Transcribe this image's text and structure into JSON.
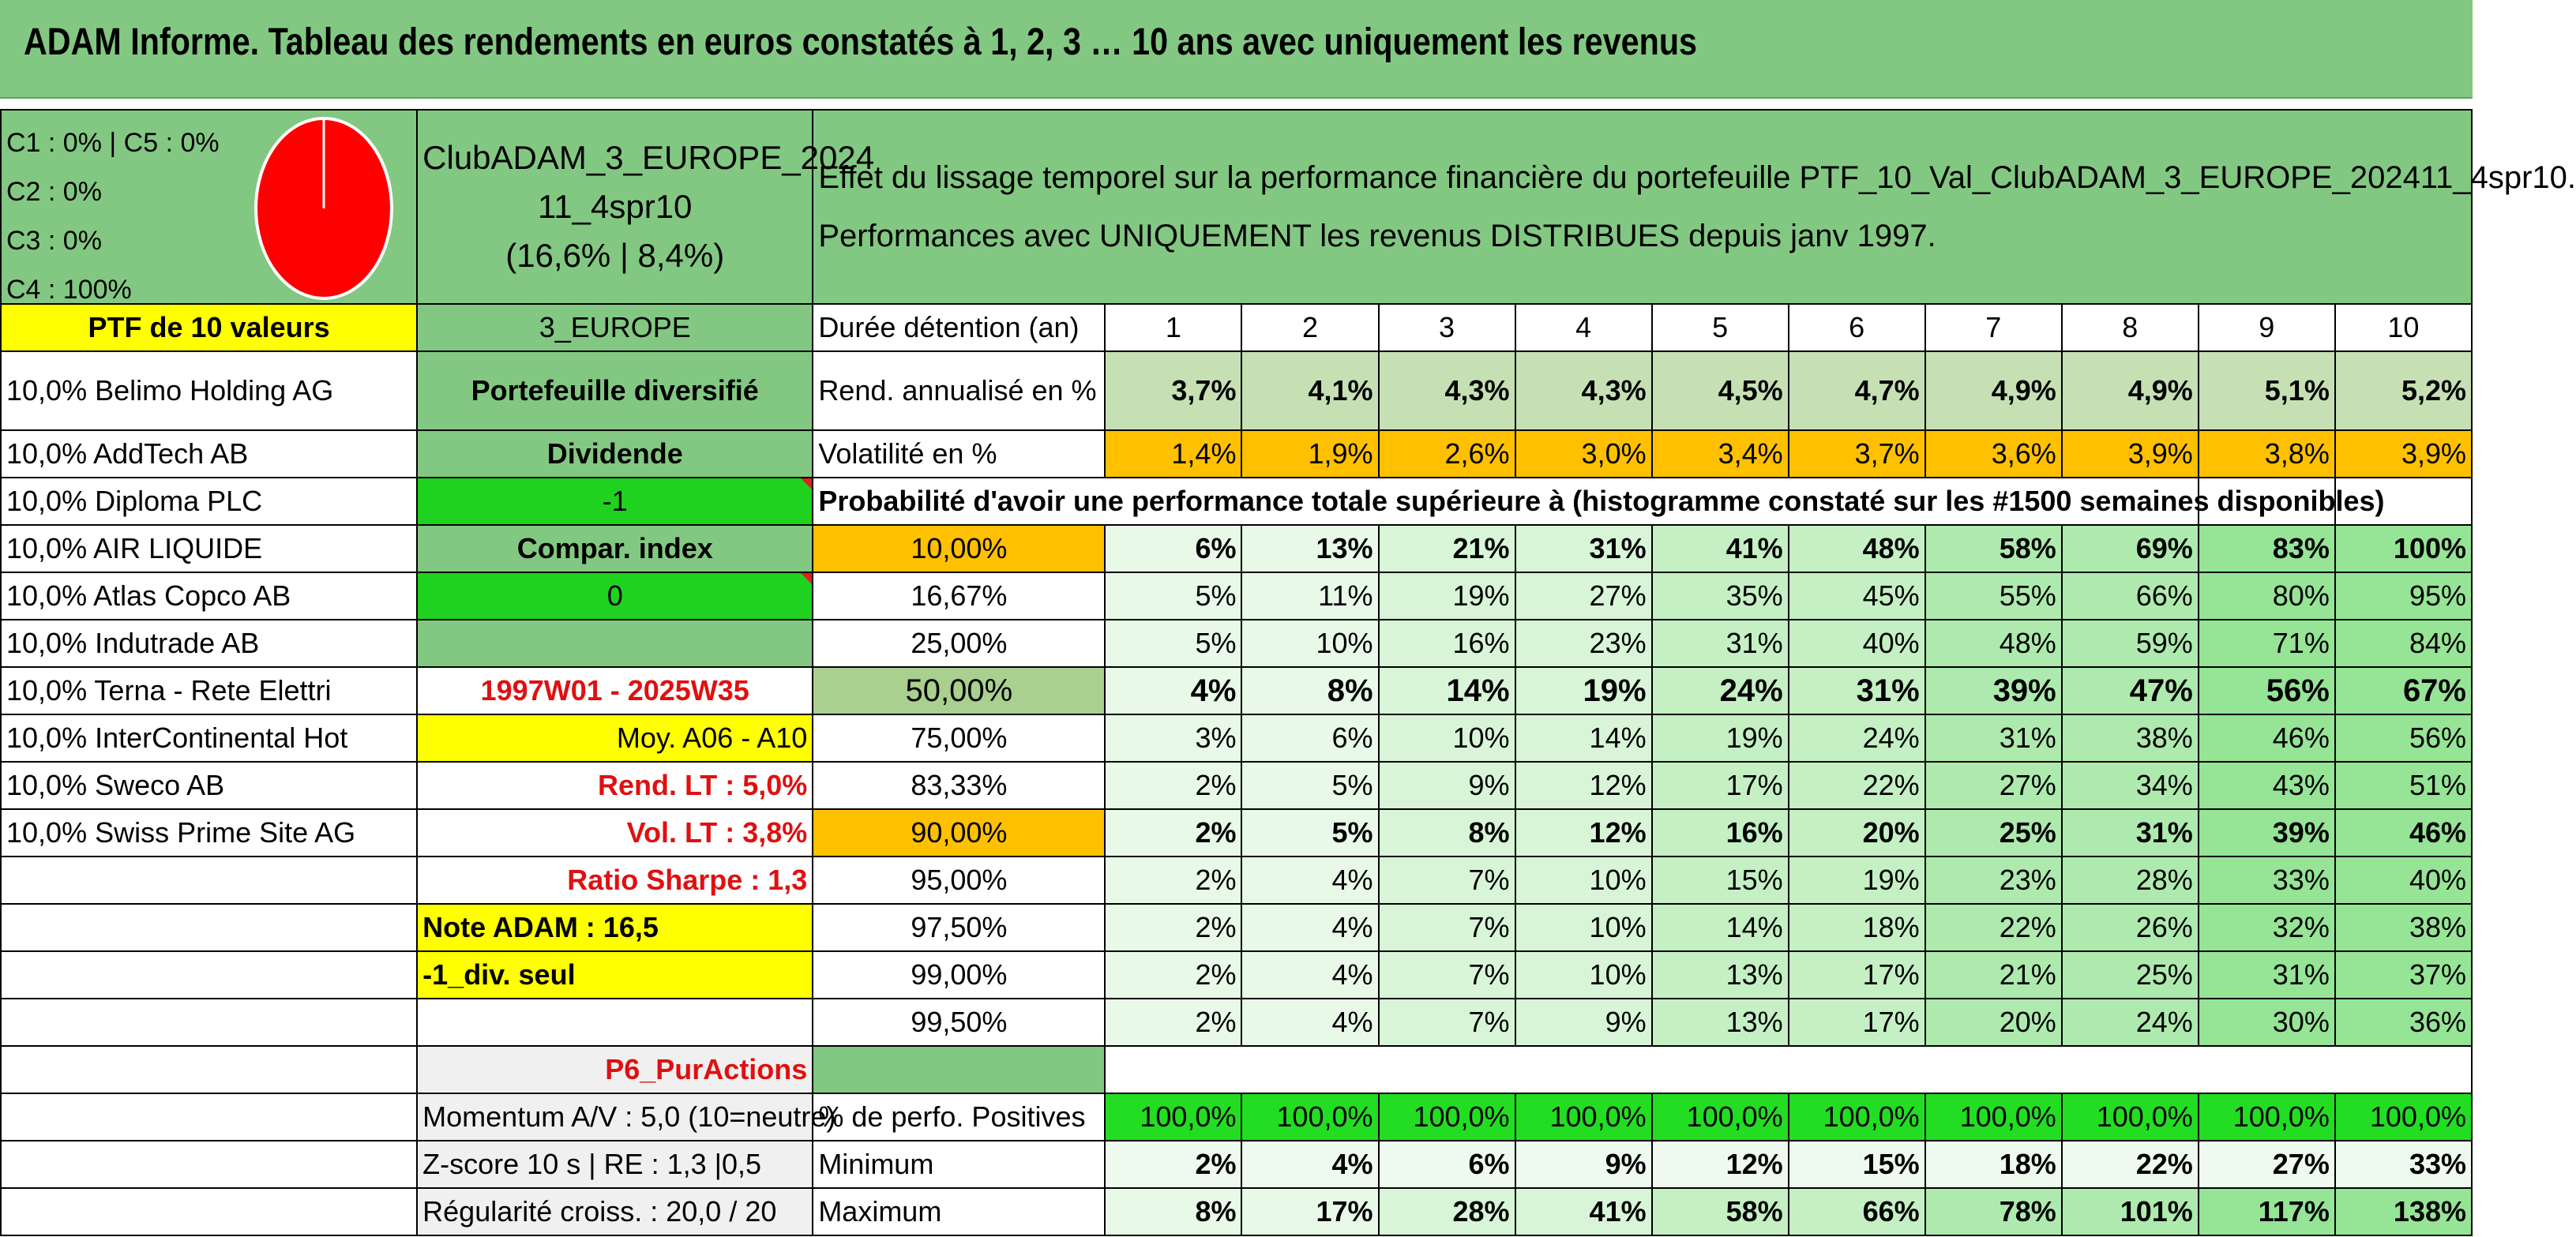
{
  "title": "ADAM Informe. Tableau des rendements en euros constatés à 1, 2, 3 … 10 ans avec uniquement les revenus",
  "allocation": {
    "lines": [
      "C1 : 0% | C5 : 0%",
      "C2 : 0%",
      "C3 : 0%",
      "C4 : 100%"
    ],
    "pie_color": "#ff0000"
  },
  "club": {
    "line1": "ClubADAM_3_EUROPE_2024",
    "line2": "11_4spr10",
    "line3": "(16,6% | 8,4%)"
  },
  "effet": {
    "line1": "Effet du lissage temporel sur la performance financière du portefeuille PTF_10_Val_ClubADAM_3_EUROPE_202411_4spr10.",
    "line2": "Performances avec UNIQUEMENT les revenus DISTRIBUES depuis janv 1997."
  },
  "portfolio_header": "PTF de 10 valeurs",
  "holdings": [
    "10,0% Belimo Holding AG",
    "10,0% AddTech AB",
    "10,0% Diploma PLC",
    "10,0% AIR LIQUIDE",
    "10,0% Atlas Copco AB",
    "10,0% Indutrade AB",
    "10,0% Terna - Rete Elettri",
    "10,0% InterContinental Hot",
    "10,0% Sweco AB",
    "10,0% Swiss Prime Site AG"
  ],
  "middle": {
    "region": "3_EUROPE",
    "type": "Portefeuille diversifié",
    "dividende": "Dividende",
    "dividende_value": "-1",
    "compar": "Compar. index",
    "compar_value": "0",
    "period": "1997W01 - 2025W35",
    "moy": "Moy. A06 - A10",
    "rend_lt": "Rend. LT : 5,0%",
    "vol_lt": "Vol. LT : 3,8%",
    "sharpe": "Ratio Sharpe : 1,3",
    "note": "Note ADAM : 16,5",
    "div_seul": "-1_div. seul",
    "p6": "P6_PurActions",
    "momentum": "Momentum A/V : 5,0 (10=neutre)",
    "zscore": "Z-score 10 s | RE : 1,3 |0,5",
    "regularite": "Régularité croiss. : 20,0 / 20"
  },
  "table": {
    "duration_label": "Durée détention (an)",
    "years": [
      "1",
      "2",
      "3",
      "4",
      "5",
      "6",
      "7",
      "8",
      "9",
      "10"
    ],
    "rend_label": "Rend. annualisé en %",
    "rend": [
      "3,7%",
      "4,1%",
      "4,3%",
      "4,3%",
      "4,5%",
      "4,7%",
      "4,9%",
      "4,9%",
      "5,1%",
      "5,2%"
    ],
    "vol_label": "Volatilité en %",
    "vol": [
      "1,4%",
      "1,9%",
      "2,6%",
      "3,0%",
      "3,4%",
      "3,7%",
      "3,6%",
      "3,9%",
      "3,8%",
      "3,9%"
    ],
    "prob_label": "Probabilité d'avoir une performance totale supérieure à (histogramme constaté sur les #1500 semaines disponibles)",
    "prob_rows": [
      {
        "threshold": "10,00%",
        "values": [
          "6%",
          "13%",
          "21%",
          "31%",
          "41%",
          "48%",
          "58%",
          "69%",
          "83%",
          "100%"
        ]
      },
      {
        "threshold": "16,67%",
        "values": [
          "5%",
          "11%",
          "19%",
          "27%",
          "35%",
          "45%",
          "55%",
          "66%",
          "80%",
          "95%"
        ]
      },
      {
        "threshold": "25,00%",
        "values": [
          "5%",
          "10%",
          "16%",
          "23%",
          "31%",
          "40%",
          "48%",
          "59%",
          "71%",
          "84%"
        ]
      },
      {
        "threshold": "50,00%",
        "values": [
          "4%",
          "8%",
          "14%",
          "19%",
          "24%",
          "31%",
          "39%",
          "47%",
          "56%",
          "67%"
        ]
      },
      {
        "threshold": "75,00%",
        "values": [
          "3%",
          "6%",
          "10%",
          "14%",
          "19%",
          "24%",
          "31%",
          "38%",
          "46%",
          "56%"
        ]
      },
      {
        "threshold": "83,33%",
        "values": [
          "2%",
          "5%",
          "9%",
          "12%",
          "17%",
          "22%",
          "27%",
          "34%",
          "43%",
          "51%"
        ]
      },
      {
        "threshold": "90,00%",
        "values": [
          "2%",
          "5%",
          "8%",
          "12%",
          "16%",
          "20%",
          "25%",
          "31%",
          "39%",
          "46%"
        ]
      },
      {
        "threshold": "95,00%",
        "values": [
          "2%",
          "4%",
          "7%",
          "10%",
          "15%",
          "19%",
          "23%",
          "28%",
          "33%",
          "40%"
        ]
      },
      {
        "threshold": "97,50%",
        "values": [
          "2%",
          "4%",
          "7%",
          "10%",
          "14%",
          "18%",
          "22%",
          "26%",
          "32%",
          "38%"
        ]
      },
      {
        "threshold": "99,00%",
        "values": [
          "2%",
          "4%",
          "7%",
          "10%",
          "13%",
          "17%",
          "21%",
          "25%",
          "31%",
          "37%"
        ]
      },
      {
        "threshold": "99,50%",
        "values": [
          "2%",
          "4%",
          "7%",
          "9%",
          "13%",
          "17%",
          "20%",
          "24%",
          "30%",
          "36%"
        ]
      }
    ],
    "pos_label": "% de perfo. Positives",
    "pos": [
      "100,0%",
      "100,0%",
      "100,0%",
      "100,0%",
      "100,0%",
      "100,0%",
      "100,0%",
      "100,0%",
      "100,0%",
      "100,0%"
    ],
    "min_label": "Minimum",
    "min": [
      "2%",
      "4%",
      "6%",
      "9%",
      "12%",
      "15%",
      "18%",
      "22%",
      "27%",
      "33%"
    ],
    "max_label": "Maximum",
    "max": [
      "8%",
      "17%",
      "28%",
      "41%",
      "58%",
      "66%",
      "78%",
      "101%",
      "117%",
      "138%"
    ]
  }
}
